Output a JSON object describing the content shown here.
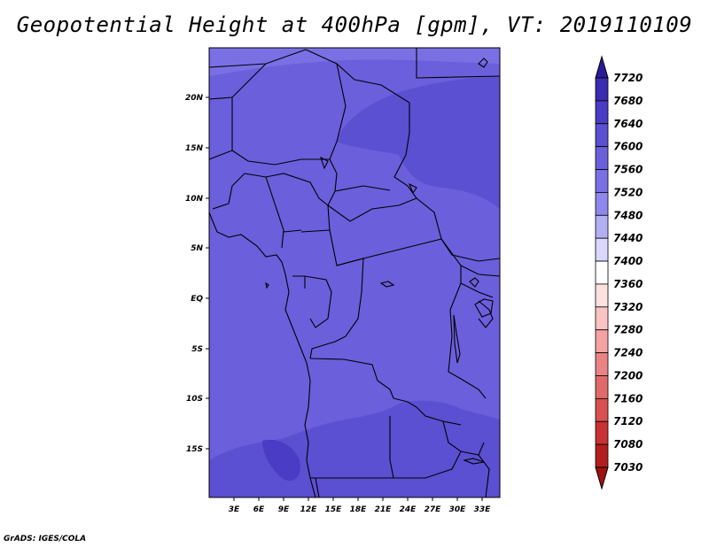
{
  "title": "Geopotential Height at 400hPa [gpm], VT: 2019110109",
  "credit": "GrADS: IGES/COLA",
  "map": {
    "lon_ticks": [
      "3E",
      "6E",
      "9E",
      "12E",
      "15E",
      "18E",
      "21E",
      "24E",
      "27E",
      "30E",
      "33E"
    ],
    "lat_ticks": [
      "20N",
      "15N",
      "10N",
      "5N",
      "EQ",
      "5S",
      "10S",
      "15S"
    ]
  },
  "colorbar": {
    "levels": [
      "7720",
      "7680",
      "7640",
      "7600",
      "7560",
      "7520",
      "7480",
      "7440",
      "7400",
      "7360",
      "7320",
      "7280",
      "7240",
      "7200",
      "7160",
      "7120",
      "7080",
      "7030"
    ],
    "colors": [
      "#2b1a99",
      "#3a2bb0",
      "#4a3cc4",
      "#5b4fd2",
      "#6b5fdc",
      "#7a70e4",
      "#8e88ec",
      "#b3aff3",
      "#d9d7fa",
      "#ffffff",
      "#fde0e0",
      "#fbc4c4",
      "#f4a2a2",
      "#e98484",
      "#e06a6a",
      "#d85050",
      "#c83232",
      "#b21e1e",
      "#a01010"
    ]
  }
}
